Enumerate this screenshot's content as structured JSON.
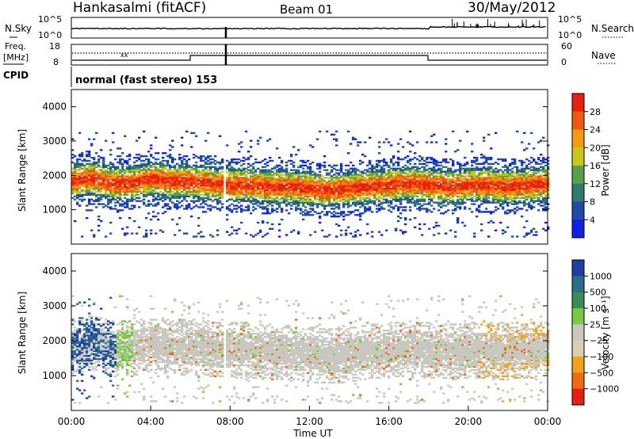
{
  "header": {
    "station": "Hankasalmi (fitACF)",
    "beam": "Beam 01",
    "date": "30/May/2012"
  },
  "top_panels": {
    "nsky_label": "N.Sky",
    "nsearch_label": "N.Search",
    "nsky_ticks": [
      "10^5",
      "10^0"
    ],
    "nsearch_ticks": [
      "10^5",
      "10^0"
    ],
    "freq_label_line1": "Freq.",
    "freq_label_line2": "[MHz]",
    "freq_ticks": [
      "18",
      "8"
    ],
    "nave_label": "Nave",
    "nave_ticks": [
      "60",
      "0"
    ],
    "cpid_label": "CPID",
    "cpid_text": "normal (fast stereo) 153"
  },
  "colorbars": {
    "power": {
      "label": "Power [dB]",
      "ticks": [
        "28",
        "24",
        "20",
        "16",
        "12",
        "8",
        "4"
      ],
      "colors": [
        "#e8200f",
        "#f05a0f",
        "#f59a12",
        "#c8c81a",
        "#5aa04b",
        "#2e7a6e",
        "#2049a8",
        "#1020e6"
      ]
    },
    "velocity": {
      "label": "Velocity [m s⁻¹]",
      "ticks": [
        "1000",
        "500",
        "100",
        "25",
        "−25",
        "−100",
        "−500",
        "−1000"
      ],
      "colors": [
        "#1f3fa6",
        "#2a6e8c",
        "#3a8a5a",
        "#7ac940",
        "#c8c8c0",
        "#d8d0b0",
        "#f4a11a",
        "#f06a10",
        "#e81f10"
      ]
    }
  },
  "chart_data": [
    {
      "type": "heatmap",
      "name": "Power",
      "ylabel": "Slant Range [km]",
      "ylim": [
        0,
        4500
      ],
      "yticks": [
        "4000",
        "3000",
        "2000",
        "1000"
      ],
      "xlim_hours": [
        0,
        24
      ],
      "xticks": [
        "00:00",
        "04:00",
        "08:00",
        "12:00",
        "16:00",
        "20:00",
        "00:00"
      ],
      "series": [
        {
          "x": [
            0,
            1,
            2,
            3,
            4,
            5,
            6,
            7,
            8,
            9,
            10,
            11,
            12,
            13,
            14,
            15,
            16,
            17,
            18,
            19,
            20,
            21,
            22,
            23,
            24
          ],
          "y": [
            1800,
            1900,
            1750,
            1750,
            1900,
            1800,
            1800,
            1750,
            1700,
            1700,
            1650,
            1650,
            1600,
            1550,
            1600,
            1650,
            1700,
            1750,
            1700,
            1650,
            1700,
            1700,
            1650,
            1700,
            1750
          ]
        }
      ]
    },
    {
      "type": "heatmap",
      "name": "Velocity",
      "ylabel": "Slant Range [km]",
      "ylim": [
        0,
        4500
      ],
      "yticks": [
        "4000",
        "3000",
        "2000",
        "1000"
      ],
      "xlim_hours": [
        0,
        24
      ],
      "xticks": [
        "00:00",
        "04:00",
        "08:00",
        "12:00",
        "16:00",
        "20:00",
        "00:00"
      ],
      "xlabel": "Time UT"
    }
  ]
}
